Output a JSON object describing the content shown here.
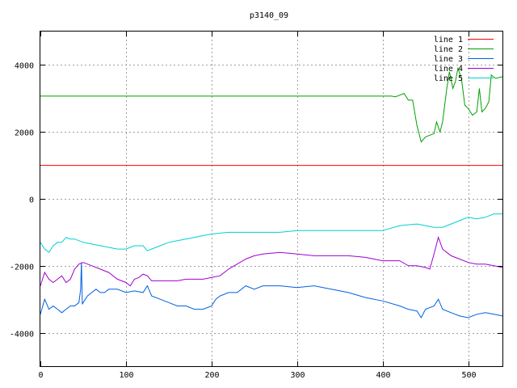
{
  "chart_data": {
    "type": "line",
    "title": "p3140_09",
    "xlabel": "",
    "ylabel": "",
    "xlim": [
      0,
      540
    ],
    "ylim": [
      -5000,
      5000
    ],
    "xticks": [
      0,
      100,
      200,
      300,
      400,
      500
    ],
    "yticks": [
      -4000,
      -2000,
      0,
      2000,
      4000
    ],
    "grid": true,
    "legend_position": "top-right",
    "series": [
      {
        "name": "line 1",
        "color": "#ff0000",
        "points": [
          [
            0,
            1000
          ],
          [
            540,
            1000
          ]
        ]
      },
      {
        "name": "line 2",
        "color": "#00a000",
        "points": [
          [
            0,
            3070
          ],
          [
            410,
            3070
          ],
          [
            415,
            3050
          ],
          [
            420,
            3100
          ],
          [
            425,
            3150
          ],
          [
            430,
            2950
          ],
          [
            435,
            2950
          ],
          [
            440,
            2200
          ],
          [
            445,
            1700
          ],
          [
            450,
            1850
          ],
          [
            455,
            1900
          ],
          [
            460,
            1950
          ],
          [
            463,
            2300
          ],
          [
            467,
            2000
          ],
          [
            470,
            2300
          ],
          [
            475,
            3300
          ],
          [
            478,
            3800
          ],
          [
            482,
            3300
          ],
          [
            485,
            3500
          ],
          [
            488,
            3900
          ],
          [
            492,
            3600
          ],
          [
            496,
            2800
          ],
          [
            500,
            2700
          ],
          [
            505,
            2500
          ],
          [
            510,
            2600
          ],
          [
            513,
            3300
          ],
          [
            516,
            2600
          ],
          [
            520,
            2700
          ],
          [
            524,
            2900
          ],
          [
            527,
            3700
          ],
          [
            532,
            3600
          ],
          [
            540,
            3650
          ]
        ]
      },
      {
        "name": "line 3",
        "color": "#0060e0",
        "points": [
          [
            0,
            -3450
          ],
          [
            5,
            -3000
          ],
          [
            10,
            -3300
          ],
          [
            15,
            -3200
          ],
          [
            20,
            -3300
          ],
          [
            25,
            -3400
          ],
          [
            30,
            -3300
          ],
          [
            35,
            -3200
          ],
          [
            40,
            -3200
          ],
          [
            45,
            -3100
          ],
          [
            47,
            -2700
          ],
          [
            48,
            -1900
          ],
          [
            49,
            -3150
          ],
          [
            50,
            -3100
          ],
          [
            55,
            -2900
          ],
          [
            60,
            -2800
          ],
          [
            65,
            -2700
          ],
          [
            70,
            -2800
          ],
          [
            75,
            -2800
          ],
          [
            80,
            -2700
          ],
          [
            90,
            -2700
          ],
          [
            100,
            -2800
          ],
          [
            110,
            -2750
          ],
          [
            120,
            -2800
          ],
          [
            125,
            -2600
          ],
          [
            130,
            -2900
          ],
          [
            140,
            -3000
          ],
          [
            150,
            -3100
          ],
          [
            160,
            -3200
          ],
          [
            170,
            -3200
          ],
          [
            180,
            -3300
          ],
          [
            190,
            -3300
          ],
          [
            200,
            -3200
          ],
          [
            205,
            -3000
          ],
          [
            210,
            -2900
          ],
          [
            220,
            -2800
          ],
          [
            230,
            -2800
          ],
          [
            240,
            -2600
          ],
          [
            250,
            -2700
          ],
          [
            260,
            -2600
          ],
          [
            280,
            -2600
          ],
          [
            300,
            -2650
          ],
          [
            320,
            -2600
          ],
          [
            340,
            -2700
          ],
          [
            360,
            -2800
          ],
          [
            380,
            -2950
          ],
          [
            400,
            -3050
          ],
          [
            420,
            -3200
          ],
          [
            430,
            -3300
          ],
          [
            440,
            -3350
          ],
          [
            445,
            -3550
          ],
          [
            450,
            -3300
          ],
          [
            460,
            -3200
          ],
          [
            465,
            -3000
          ],
          [
            470,
            -3300
          ],
          [
            480,
            -3400
          ],
          [
            490,
            -3500
          ],
          [
            500,
            -3550
          ],
          [
            510,
            -3450
          ],
          [
            520,
            -3400
          ],
          [
            530,
            -3450
          ],
          [
            540,
            -3500
          ]
        ]
      },
      {
        "name": "line 4",
        "color": "#a000d0",
        "points": [
          [
            0,
            -2600
          ],
          [
            5,
            -2200
          ],
          [
            10,
            -2400
          ],
          [
            15,
            -2500
          ],
          [
            20,
            -2400
          ],
          [
            25,
            -2300
          ],
          [
            30,
            -2500
          ],
          [
            35,
            -2400
          ],
          [
            40,
            -2100
          ],
          [
            45,
            -1950
          ],
          [
            50,
            -1900
          ],
          [
            55,
            -1950
          ],
          [
            60,
            -2000
          ],
          [
            70,
            -2100
          ],
          [
            80,
            -2200
          ],
          [
            90,
            -2400
          ],
          [
            100,
            -2500
          ],
          [
            105,
            -2600
          ],
          [
            110,
            -2400
          ],
          [
            115,
            -2350
          ],
          [
            120,
            -2250
          ],
          [
            125,
            -2300
          ],
          [
            130,
            -2450
          ],
          [
            140,
            -2450
          ],
          [
            150,
            -2450
          ],
          [
            160,
            -2450
          ],
          [
            170,
            -2400
          ],
          [
            180,
            -2400
          ],
          [
            190,
            -2400
          ],
          [
            200,
            -2350
          ],
          [
            210,
            -2300
          ],
          [
            220,
            -2100
          ],
          [
            230,
            -1950
          ],
          [
            240,
            -1800
          ],
          [
            250,
            -1700
          ],
          [
            260,
            -1650
          ],
          [
            280,
            -1600
          ],
          [
            300,
            -1650
          ],
          [
            320,
            -1700
          ],
          [
            340,
            -1700
          ],
          [
            360,
            -1700
          ],
          [
            380,
            -1750
          ],
          [
            400,
            -1850
          ],
          [
            420,
            -1850
          ],
          [
            430,
            -2000
          ],
          [
            440,
            -2000
          ],
          [
            450,
            -2050
          ],
          [
            455,
            -2100
          ],
          [
            460,
            -1650
          ],
          [
            465,
            -1150
          ],
          [
            470,
            -1500
          ],
          [
            475,
            -1600
          ],
          [
            480,
            -1700
          ],
          [
            490,
            -1800
          ],
          [
            500,
            -1900
          ],
          [
            510,
            -1950
          ],
          [
            520,
            -1950
          ],
          [
            530,
            -2000
          ],
          [
            540,
            -2050
          ]
        ]
      },
      {
        "name": "line 5",
        "color": "#00d0d0",
        "points": [
          [
            0,
            -1300
          ],
          [
            5,
            -1500
          ],
          [
            10,
            -1600
          ],
          [
            15,
            -1400
          ],
          [
            20,
            -1300
          ],
          [
            25,
            -1300
          ],
          [
            30,
            -1150
          ],
          [
            35,
            -1200
          ],
          [
            40,
            -1200
          ],
          [
            50,
            -1300
          ],
          [
            60,
            -1350
          ],
          [
            70,
            -1400
          ],
          [
            80,
            -1450
          ],
          [
            90,
            -1500
          ],
          [
            100,
            -1500
          ],
          [
            110,
            -1400
          ],
          [
            120,
            -1400
          ],
          [
            125,
            -1550
          ],
          [
            130,
            -1500
          ],
          [
            140,
            -1400
          ],
          [
            150,
            -1300
          ],
          [
            160,
            -1250
          ],
          [
            170,
            -1200
          ],
          [
            180,
            -1150
          ],
          [
            190,
            -1100
          ],
          [
            200,
            -1050
          ],
          [
            220,
            -1000
          ],
          [
            240,
            -1000
          ],
          [
            260,
            -1000
          ],
          [
            280,
            -1000
          ],
          [
            300,
            -950
          ],
          [
            320,
            -950
          ],
          [
            340,
            -950
          ],
          [
            360,
            -950
          ],
          [
            380,
            -950
          ],
          [
            400,
            -950
          ],
          [
            420,
            -800
          ],
          [
            440,
            -750
          ],
          [
            450,
            -800
          ],
          [
            460,
            -850
          ],
          [
            470,
            -850
          ],
          [
            480,
            -750
          ],
          [
            490,
            -650
          ],
          [
            500,
            -550
          ],
          [
            510,
            -600
          ],
          [
            520,
            -550
          ],
          [
            530,
            -450
          ],
          [
            540,
            -450
          ]
        ]
      }
    ]
  }
}
